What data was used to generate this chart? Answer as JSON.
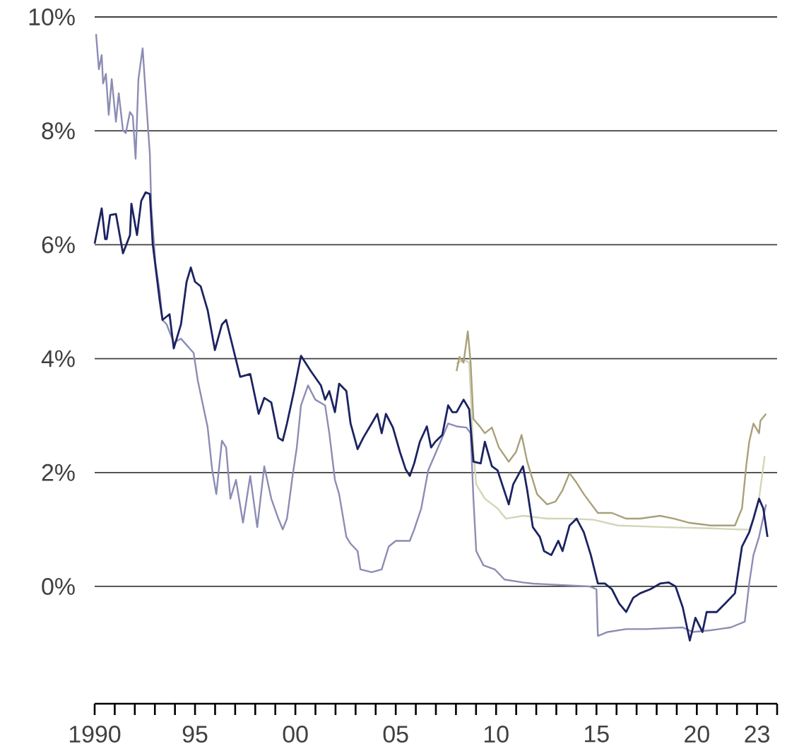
{
  "chart_data": {
    "type": "line",
    "xlim": [
      1990,
      2024
    ],
    "ylim": [
      -2.06,
      10
    ],
    "xticks": [
      1990,
      {
        "value": 1995,
        "label": "95"
      },
      {
        "value": 2000,
        "label": "00"
      },
      {
        "value": 2005,
        "label": "05"
      },
      {
        "value": 2010,
        "label": "10"
      },
      {
        "value": 2015,
        "label": "15"
      },
      {
        "value": 2020,
        "label": "20"
      },
      {
        "value": 2023,
        "label": "23"
      },
      {
        "value": 1991,
        "label": null
      },
      {
        "value": 1992,
        "label": null
      },
      {
        "value": 1993,
        "label": null
      },
      {
        "value": 1994,
        "label": null
      },
      {
        "value": 1996,
        "label": null
      },
      {
        "value": 1997,
        "label": null
      },
      {
        "value": 1998,
        "label": null
      },
      {
        "value": 1999,
        "label": null
      },
      {
        "value": 2001,
        "label": null
      },
      {
        "value": 2002,
        "label": null
      },
      {
        "value": 2003,
        "label": null
      },
      {
        "value": 2004,
        "label": null
      },
      {
        "value": 2006,
        "label": null
      },
      {
        "value": 2007,
        "label": null
      },
      {
        "value": 2008,
        "label": null
      },
      {
        "value": 2009,
        "label": null
      },
      {
        "value": 2011,
        "label": null
      },
      {
        "value": 2012,
        "label": null
      },
      {
        "value": 2013,
        "label": null
      },
      {
        "value": 2014,
        "label": null
      },
      {
        "value": 2016,
        "label": null
      },
      {
        "value": 2017,
        "label": null
      },
      {
        "value": 2018,
        "label": null
      },
      {
        "value": 2019,
        "label": null
      },
      {
        "value": 2021,
        "label": null
      },
      {
        "value": 2022,
        "label": null
      },
      {
        "value": 2024,
        "label": null
      }
    ],
    "yticks": [
      {
        "value": 0,
        "label": "0%"
      },
      {
        "value": 2,
        "label": "2%"
      },
      {
        "value": 4,
        "label": "4%"
      },
      {
        "value": 6,
        "label": "6%"
      },
      {
        "value": 8,
        "label": "8%"
      },
      {
        "value": 10,
        "label": "10%"
      }
    ],
    "grid": "y",
    "series": [
      {
        "color": "#d3d5b8",
        "x": [
          2008.03,
          2008.38,
          2008.66,
          2008.87,
          2009.01,
          2009.44,
          2010.07,
          2010.49,
          2011.34,
          2012.54,
          2013.66,
          2014.86,
          2016.06,
          2018.38,
          2020.7,
          2022.11,
          2022.61,
          2022.82,
          2023.1,
          2023.38
        ],
        "values": [
          3.91,
          3.98,
          3.93,
          2.36,
          1.79,
          1.54,
          1.37,
          1.19,
          1.24,
          1.19,
          1.19,
          1.17,
          1.07,
          1.04,
          1.02,
          1.0,
          1.0,
          1.19,
          1.54,
          2.29
        ]
      },
      {
        "color": "#a9a07a",
        "x": [
          2008.03,
          2008.17,
          2008.38,
          2008.59,
          2008.73,
          2008.87,
          2009.23,
          2009.44,
          2009.79,
          2010.14,
          2010.63,
          2010.99,
          2011.27,
          2011.55,
          2012.04,
          2012.54,
          2012.96,
          2013.31,
          2013.66,
          2014.01,
          2014.37,
          2015.07,
          2015.77,
          2016.48,
          2017.18,
          2018.17,
          2018.87,
          2019.58,
          2020.7,
          2021.9,
          2022.25,
          2022.46,
          2022.61,
          2022.82,
          2023.1,
          2023.17,
          2023.45
        ],
        "values": [
          3.78,
          4.03,
          3.93,
          4.48,
          3.93,
          2.94,
          2.79,
          2.69,
          2.79,
          2.44,
          2.19,
          2.36,
          2.66,
          2.19,
          1.62,
          1.44,
          1.49,
          1.69,
          1.99,
          1.82,
          1.62,
          1.29,
          1.29,
          1.19,
          1.19,
          1.24,
          1.19,
          1.12,
          1.07,
          1.07,
          1.37,
          2.11,
          2.54,
          2.86,
          2.69,
          2.91,
          3.03
        ]
      },
      {
        "color": "#8c8cb4",
        "x": [
          1990.07,
          1990.21,
          1990.35,
          1990.42,
          1990.56,
          1990.7,
          1990.85,
          1991.06,
          1991.2,
          1991.41,
          1991.55,
          1991.76,
          1991.9,
          1992.04,
          1992.18,
          1992.39,
          1992.54,
          1992.75,
          1992.82,
          1993.03,
          1993.24,
          1993.38,
          1993.59,
          1993.94,
          1994.3,
          1994.93,
          1995.14,
          1995.63,
          1995.85,
          1996.06,
          1996.34,
          1996.55,
          1996.76,
          1997.04,
          1997.39,
          1997.75,
          1998.1,
          1998.45,
          1998.8,
          1999.15,
          1999.37,
          1999.58,
          1999.86,
          2000.07,
          2000.28,
          2000.63,
          2000.99,
          2001.48,
          2001.69,
          2001.97,
          2002.18,
          2002.54,
          2002.75,
          2003.1,
          2003.24,
          2003.8,
          2004.3,
          2004.65,
          2005.0,
          2005.7,
          2005.92,
          2006.27,
          2006.62,
          2007.11,
          2007.61,
          2008.03,
          2008.52,
          2008.73,
          2008.87,
          2009.01,
          2009.37,
          2009.93,
          2010.42,
          2011.34,
          2011.83,
          2014.65,
          2015.0,
          2015.07,
          2015.56,
          2016.48,
          2017.46,
          2019.3,
          2019.79,
          2020.7,
          2021.69,
          2022.39,
          2022.61,
          2022.82,
          2023.1,
          2023.45
        ],
        "values": [
          9.7,
          9.08,
          9.33,
          8.83,
          9.0,
          8.28,
          8.91,
          8.16,
          8.66,
          8.01,
          7.96,
          8.33,
          8.26,
          7.51,
          8.91,
          9.45,
          8.66,
          7.59,
          6.67,
          5.67,
          5.17,
          4.68,
          4.6,
          4.28,
          4.35,
          4.1,
          3.61,
          2.79,
          2.06,
          1.62,
          2.56,
          2.44,
          1.54,
          1.87,
          1.12,
          1.94,
          1.04,
          2.11,
          1.54,
          1.19,
          1.0,
          1.19,
          1.94,
          2.44,
          3.18,
          3.53,
          3.28,
          3.18,
          2.69,
          1.87,
          1.62,
          0.87,
          0.75,
          0.62,
          0.3,
          0.25,
          0.3,
          0.7,
          0.8,
          0.8,
          1.0,
          1.37,
          2.04,
          2.44,
          2.86,
          2.81,
          2.79,
          2.69,
          1.54,
          0.62,
          0.37,
          0.3,
          0.12,
          0.07,
          0.05,
          0.0,
          -0.05,
          -0.87,
          -0.8,
          -0.75,
          -0.75,
          -0.72,
          -0.8,
          -0.77,
          -0.72,
          -0.62,
          0.05,
          0.55,
          0.87,
          1.44
        ]
      },
      {
        "color": "#1c2361",
        "x": [
          1990.0,
          1990.35,
          1990.52,
          1990.6,
          1990.77,
          1991.06,
          1991.41,
          1991.76,
          1991.83,
          1992.11,
          1992.32,
          1992.54,
          1992.75,
          1992.89,
          1993.24,
          1993.38,
          1993.73,
          1993.94,
          1994.3,
          1994.58,
          1994.79,
          1995.0,
          1995.28,
          1995.63,
          1995.99,
          1996.34,
          1996.55,
          1996.9,
          1997.25,
          1997.75,
          1998.17,
          1998.45,
          1998.8,
          1999.15,
          1999.37,
          1999.58,
          1999.93,
          2000.28,
          2000.77,
          2001.27,
          2001.48,
          2001.69,
          2001.97,
          2002.18,
          2002.54,
          2002.75,
          2003.1,
          2003.38,
          2003.8,
          2004.08,
          2004.3,
          2004.51,
          2004.86,
          2005.21,
          2005.49,
          2005.7,
          2005.92,
          2006.2,
          2006.55,
          2006.76,
          2006.97,
          2007.32,
          2007.61,
          2007.82,
          2008.03,
          2008.38,
          2008.66,
          2008.87,
          2009.23,
          2009.44,
          2009.79,
          2010.07,
          2010.63,
          2010.85,
          2011.34,
          2011.55,
          2011.83,
          2012.18,
          2012.39,
          2012.75,
          2013.1,
          2013.31,
          2013.66,
          2014.01,
          2014.37,
          2014.72,
          2015.07,
          2015.42,
          2015.77,
          2016.13,
          2016.48,
          2016.83,
          2017.18,
          2017.68,
          2018.17,
          2018.59,
          2018.94,
          2019.3,
          2019.65,
          2019.93,
          2020.28,
          2020.49,
          2020.99,
          2021.41,
          2021.9,
          2022.25,
          2022.61,
          2022.82,
          2023.1,
          2023.31,
          2023.52
        ],
        "values": [
          6.02,
          6.64,
          6.1,
          6.1,
          6.52,
          6.54,
          5.85,
          6.17,
          6.72,
          6.17,
          6.77,
          6.92,
          6.89,
          6.02,
          5.02,
          4.68,
          4.78,
          4.18,
          4.6,
          5.35,
          5.6,
          5.35,
          5.27,
          4.85,
          4.15,
          4.6,
          4.68,
          4.18,
          3.68,
          3.73,
          3.03,
          3.31,
          3.23,
          2.61,
          2.56,
          2.86,
          3.43,
          4.05,
          3.78,
          3.53,
          3.28,
          3.43,
          3.06,
          3.56,
          3.43,
          2.86,
          2.41,
          2.61,
          2.86,
          3.03,
          2.69,
          3.03,
          2.79,
          2.36,
          2.06,
          1.94,
          2.16,
          2.54,
          2.81,
          2.44,
          2.54,
          2.66,
          3.18,
          3.06,
          3.06,
          3.28,
          3.11,
          2.19,
          2.16,
          2.54,
          2.11,
          2.04,
          1.44,
          1.79,
          2.11,
          1.69,
          1.04,
          0.87,
          0.62,
          0.55,
          0.8,
          0.62,
          1.07,
          1.19,
          0.95,
          0.55,
          0.05,
          0.05,
          -0.05,
          -0.3,
          -0.45,
          -0.2,
          -0.12,
          -0.05,
          0.05,
          0.07,
          0.0,
          -0.37,
          -0.95,
          -0.55,
          -0.8,
          -0.45,
          -0.45,
          -0.3,
          -0.12,
          0.7,
          0.95,
          1.19,
          1.54,
          1.37,
          0.87
        ]
      }
    ]
  }
}
